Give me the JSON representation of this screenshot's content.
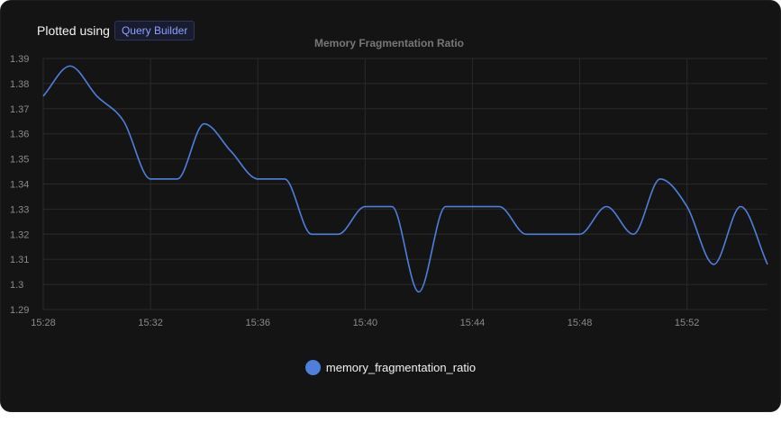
{
  "header": {
    "prefix": "Plotted using",
    "query_builder": "Query Builder"
  },
  "colors": {
    "line": "#4f7fdc",
    "grid": "#2a2a2a",
    "tick_text": "#8a8a8a",
    "title_text": "#777777"
  },
  "chart_data": {
    "type": "line",
    "title": "Memory Fragmentation Ratio",
    "xlabel": "",
    "ylabel": "",
    "grid": true,
    "legend_position": "bottom-center",
    "ylim": [
      1.29,
      1.39
    ],
    "y_ticks": [
      "1.39",
      "1.38",
      "1.37",
      "1.36",
      "1.35",
      "1.34",
      "1.33",
      "1.32",
      "1.31",
      "1.3",
      "1.29"
    ],
    "y_tick_values": [
      1.39,
      1.38,
      1.37,
      1.36,
      1.35,
      1.34,
      1.33,
      1.32,
      1.31,
      1.3,
      1.29
    ],
    "x_ticks": [
      "15:28",
      "15:32",
      "15:36",
      "15:40",
      "15:44",
      "15:48",
      "15:52"
    ],
    "x_tick_times": [
      "15:28",
      "15:32",
      "15:36",
      "15:40",
      "15:44",
      "15:48",
      "15:52"
    ],
    "xlim": [
      "15:28",
      "15:55"
    ],
    "series": [
      {
        "name": "memory_fragmentation_ratio",
        "color": "#4f7fdc",
        "x": [
          "15:28",
          "15:29",
          "15:30",
          "15:31",
          "15:32",
          "15:33",
          "15:34",
          "15:35",
          "15:36",
          "15:37",
          "15:38",
          "15:39",
          "15:40",
          "15:41",
          "15:42",
          "15:43",
          "15:44",
          "15:45",
          "15:46",
          "15:47",
          "15:48",
          "15:49",
          "15:50",
          "15:51",
          "15:52",
          "15:53",
          "15:54",
          "15:55"
        ],
        "values": [
          1.375,
          1.387,
          1.375,
          1.365,
          1.342,
          1.342,
          1.364,
          1.353,
          1.342,
          1.342,
          1.32,
          1.32,
          1.331,
          1.331,
          1.297,
          1.331,
          1.331,
          1.331,
          1.32,
          1.32,
          1.32,
          1.331,
          1.32,
          1.342,
          1.331,
          1.308,
          1.331,
          1.308
        ]
      }
    ]
  }
}
